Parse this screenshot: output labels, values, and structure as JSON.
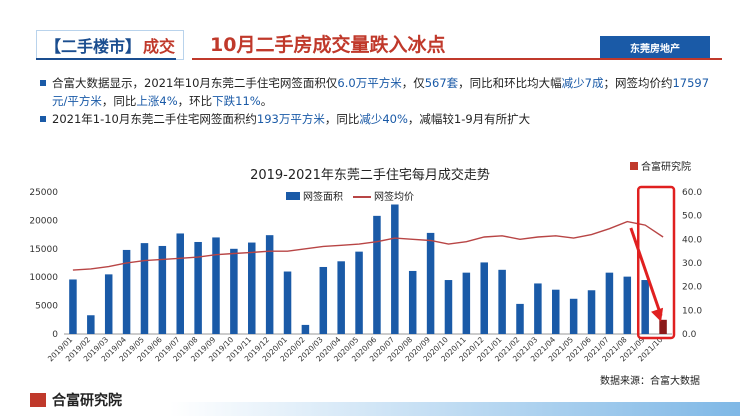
{
  "header": {
    "tag_part1": "【二手楼市】",
    "tag_part2": "成交",
    "title": "10月二手房成交量跌入冰点",
    "brand": "东莞房地产"
  },
  "bullets": {
    "b1_1": "合富大数据显示，2021年10月东莞二手住宅网签面积仅",
    "b1_2": "6.0万平方米",
    "b1_3": "，仅",
    "b1_4": "567套",
    "b1_5": "，同比和环比均大幅",
    "b1_6": "减少7成",
    "b1_7": "；网签均价约",
    "b1_8": "17597元/平方米",
    "b1_9": "，同比",
    "b1_10": "上涨4%",
    "b1_11": "，环比",
    "b1_12": "下跌11%",
    "b1_13": "。",
    "b2_1": "2021年1-10月东莞二手住宅网签面积约",
    "b2_2": "193万平方米",
    "b2_3": "，同比",
    "b2_4": "减少40%",
    "b2_5": "，减幅较1-9月有所扩大"
  },
  "sub_logo": "合富研究院",
  "source": "数据来源：合富大数据",
  "footer": "合富研究院",
  "chart_data": {
    "type": "bar",
    "title": "2019-2021年东莞二手住宅每月成交走势",
    "categories": [
      "2019/01",
      "2019/02",
      "2019/03",
      "2019/04",
      "2019/05",
      "2019/06",
      "2019/07",
      "2019/08",
      "2019/09",
      "2019/10",
      "2019/11",
      "2019/12",
      "2020/01",
      "2020/02",
      "2020/03",
      "2020/04",
      "2020/05",
      "2020/06",
      "2020/07",
      "2020/08",
      "2020/09",
      "2020/10",
      "2020/11",
      "2020/12",
      "2021/01",
      "2021/02",
      "2021/03",
      "2021/04",
      "2021/05",
      "2021/06",
      "2021/07",
      "2021/08",
      "2021/09",
      "2021/10"
    ],
    "series": [
      {
        "name": "网签面积",
        "type": "bar",
        "axis": "left",
        "values": [
          9600,
          3300,
          10500,
          14800,
          16000,
          15500,
          17700,
          16200,
          17000,
          15000,
          16100,
          17400,
          11000,
          1600,
          11800,
          12800,
          14500,
          20800,
          22800,
          11100,
          17800,
          9500,
          10800,
          12600,
          11300,
          5300,
          8900,
          7800,
          6200,
          7700,
          10800,
          10100,
          9500,
          2500
        ]
      },
      {
        "name": "网签均价",
        "type": "line",
        "axis": "right",
        "values": [
          27.0,
          27.5,
          28.5,
          30.0,
          31.0,
          31.5,
          32.0,
          32.5,
          33.5,
          34.0,
          34.5,
          35.0,
          35.0,
          36.0,
          37.0,
          37.5,
          38.0,
          39.0,
          40.5,
          40.0,
          39.5,
          38.0,
          39.0,
          41.0,
          41.5,
          40.0,
          41.0,
          41.5,
          40.5,
          42.0,
          44.5,
          47.5,
          46.0,
          41.0
        ]
      }
    ],
    "y_left": {
      "min": 0,
      "max": 25000,
      "ticks": [
        "0",
        "5000",
        "10000",
        "15000",
        "20000",
        "25000"
      ]
    },
    "y_right": {
      "min": 0,
      "max": 60,
      "ticks": [
        "0.0",
        "10.0",
        "20.0",
        "30.0",
        "40.0",
        "50.0",
        "60.0"
      ]
    },
    "colors": {
      "bar": "#1a5aa7",
      "bar_last": "#8b1a1a",
      "line": "#b84545",
      "highlight": "#e02020"
    }
  }
}
